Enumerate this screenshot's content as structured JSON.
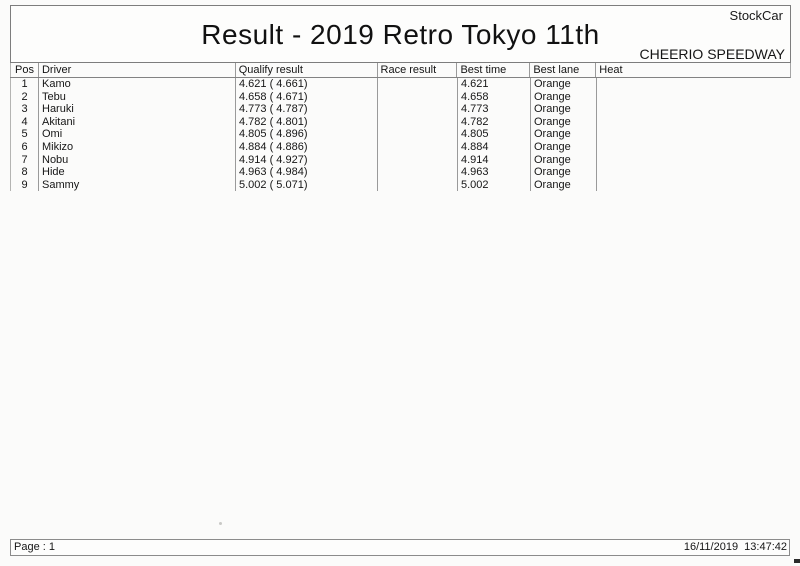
{
  "header": {
    "brand": "StockCar",
    "title": "Result - 2019 Retro Tokyo 11th",
    "venue": "CHEERIO SPEEDWAY"
  },
  "table": {
    "columns": [
      "Pos",
      "Driver",
      "Qualify result",
      "Race result",
      "Best time",
      "Best lane",
      "Heat"
    ],
    "rows": [
      {
        "pos": "1",
        "driver": "Kamo",
        "qualify": "4.621 ( 4.661)",
        "race": "",
        "best_time": "4.621",
        "best_lane": "Orange",
        "heat": ""
      },
      {
        "pos": "2",
        "driver": "Tebu",
        "qualify": "4.658 ( 4.671)",
        "race": "",
        "best_time": "4.658",
        "best_lane": "Orange",
        "heat": ""
      },
      {
        "pos": "3",
        "driver": "Haruki",
        "qualify": "4.773 ( 4.787)",
        "race": "",
        "best_time": "4.773",
        "best_lane": "Orange",
        "heat": ""
      },
      {
        "pos": "4",
        "driver": "Akitani",
        "qualify": "4.782 ( 4.801)",
        "race": "",
        "best_time": "4.782",
        "best_lane": "Orange",
        "heat": ""
      },
      {
        "pos": "5",
        "driver": "Omi",
        "qualify": "4.805 ( 4.896)",
        "race": "",
        "best_time": "4.805",
        "best_lane": "Orange",
        "heat": ""
      },
      {
        "pos": "6",
        "driver": "Mikizo",
        "qualify": "4.884 ( 4.886)",
        "race": "",
        "best_time": "4.884",
        "best_lane": "Orange",
        "heat": ""
      },
      {
        "pos": "7",
        "driver": "Nobu",
        "qualify": "4.914 ( 4.927)",
        "race": "",
        "best_time": "4.914",
        "best_lane": "Orange",
        "heat": ""
      },
      {
        "pos": "8",
        "driver": "Hide",
        "qualify": "4.963 ( 4.984)",
        "race": "",
        "best_time": "4.963",
        "best_lane": "Orange",
        "heat": ""
      },
      {
        "pos": "9",
        "driver": "Sammy",
        "qualify": "5.002 ( 5.071)",
        "race": "",
        "best_time": "5.002",
        "best_lane": "Orange",
        "heat": ""
      }
    ]
  },
  "footer": {
    "page_label": "Page : 1",
    "datetime": "16/11/2019  13:47:42"
  },
  "colors": {
    "paper": "#fbfbfa",
    "border_dark": "#7d7d7d",
    "border_light": "#9a9a9a",
    "text": "#161616"
  }
}
